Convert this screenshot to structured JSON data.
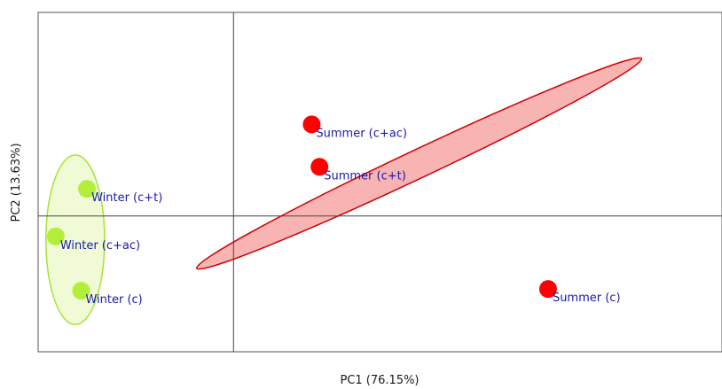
{
  "chart_data": {
    "type": "scatter",
    "title": "",
    "xlabel": "PC1 (76.15%)",
    "ylabel": "PC2 (13.63%)",
    "xlim": [
      -1.0,
      2.5
    ],
    "ylim": [
      -0.8,
      1.2
    ],
    "grid": false,
    "legend": "none",
    "zero_lines": true,
    "series": [
      {
        "group": "summer",
        "color": "#ff0000",
        "ellipse_fill": "#f8b3b3",
        "ellipse_stroke": "#cc0000",
        "ellipse": {
          "cx": 0.95,
          "cy": 0.31,
          "rx": 1.295,
          "ry": 0.08,
          "angle_deg": 28.5
        },
        "points": [
          {
            "label": "Summer (c+ac)",
            "x": 0.4,
            "y": 0.54
          },
          {
            "label": "Summer (c+t)",
            "x": 0.44,
            "y": 0.29
          },
          {
            "label": "Summer (c)",
            "x": 1.61,
            "y": -0.43
          }
        ]
      },
      {
        "group": "winter",
        "color": "#b3ee3a",
        "ellipse_fill": "#f0fbd6",
        "ellipse_stroke": "#a6e23a",
        "ellipse": {
          "cx": -0.81,
          "cy": -0.14,
          "rx": 0.15,
          "ry": 0.5,
          "angle_deg": 0
        },
        "points": [
          {
            "label": "Winter (c+t)",
            "x": -0.75,
            "y": 0.16
          },
          {
            "label": "Winter (c+ac)",
            "x": -0.91,
            "y": -0.12
          },
          {
            "label": "Winter (c)",
            "x": -0.78,
            "y": -0.44
          }
        ]
      }
    ],
    "label_color": "#1a1aa8"
  }
}
